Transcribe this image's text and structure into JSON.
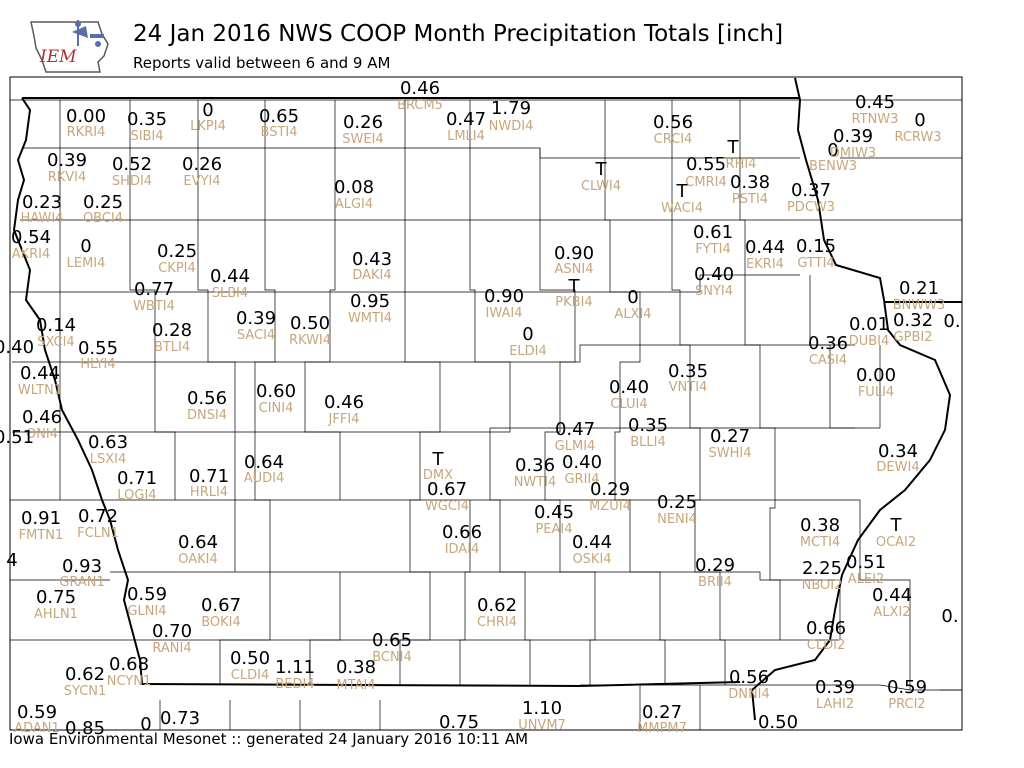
{
  "header": {
    "title": "24 Jan 2016 NWS COOP Month Precipitation Totals [inch]",
    "subtitle": "Reports valid between 6 and 9 AM",
    "logo_text": "IEM"
  },
  "footer": {
    "text": "Iowa Environmental Mesonet :: generated 24 January 2016 10:11 AM"
  },
  "colors": {
    "value_text": "#000000",
    "station_id_text": "#c8a67c",
    "county_lines": "#000000",
    "state_border": "#000000",
    "logo_red": "#b03030",
    "logo_blue": "#5a6fa6"
  },
  "stations": [
    {
      "id": "RKRI4",
      "value": "0.00"
    },
    {
      "id": "SIBI4",
      "value": "0.35"
    },
    {
      "id": "LKPI4",
      "value": "0"
    },
    {
      "id": "BSTI4",
      "value": "0.65"
    },
    {
      "id": "BRCM5",
      "value": "0.46"
    },
    {
      "id": "SWEI4",
      "value": "0.26"
    },
    {
      "id": "LMLI4",
      "value": "0.47"
    },
    {
      "id": "NWDI4",
      "value": "1.79"
    },
    {
      "id": "CRCI4",
      "value": "0.56"
    },
    {
      "id": "RTNW3",
      "value": "0.45"
    },
    {
      "id": "RCRW3",
      "value": "0"
    },
    {
      "id": "DMIW3",
      "value": "0"
    },
    {
      "id": "BENW3",
      "value": "0.39"
    },
    {
      "id": "RKVI4",
      "value": "0.39"
    },
    {
      "id": "SHDI4",
      "value": "0.52"
    },
    {
      "id": "EVYI4",
      "value": "0.26"
    },
    {
      "id": "CLWI4",
      "value": "T"
    },
    {
      "id": "RHI4",
      "value": "T"
    },
    {
      "id": "CMRI4",
      "value": "0.55"
    },
    {
      "id": "WACI4",
      "value": "T"
    },
    {
      "id": "PSTI4",
      "value": "0.38"
    },
    {
      "id": "PDCW3",
      "value": "0.37"
    },
    {
      "id": "HAWI4",
      "value": "0.23"
    },
    {
      "id": "OBCI4",
      "value": "0.25"
    },
    {
      "id": "ALGI4",
      "value": "0.08"
    },
    {
      "id": "AKRI4",
      "value": "0.54"
    },
    {
      "id": "LEMI4",
      "value": "0"
    },
    {
      "id": "CKPI4",
      "value": "0.25"
    },
    {
      "id": "ASNI4",
      "value": "0.90"
    },
    {
      "id": "FYTI4",
      "value": "0.61"
    },
    {
      "id": "EKRI4",
      "value": "0.44"
    },
    {
      "id": "GTTI4",
      "value": "0.15"
    },
    {
      "id": "DAKI4",
      "value": "0.43"
    },
    {
      "id": "SLBI4",
      "value": "0.44"
    },
    {
      "id": "SNYI4",
      "value": "0.40"
    },
    {
      "id": "WBTI4",
      "value": "0.77"
    },
    {
      "id": "PKBI4",
      "value": "T"
    },
    {
      "id": "WMTI4",
      "value": "0.95"
    },
    {
      "id": "IWAI4",
      "value": "0.90"
    },
    {
      "id": "ALXI4",
      "value": "0"
    },
    {
      "id": "BNWW3",
      "value": "0.21"
    },
    {
      "id": "SACI4",
      "value": "0.39"
    },
    {
      "id": "RKWI4",
      "value": "0.50"
    },
    {
      "id": "SXCI4",
      "value": "0.14"
    },
    {
      "id": "BTLI4",
      "value": "0.28"
    },
    {
      "id": "ELDI4",
      "value": "0"
    },
    {
      "id": "DUBI4",
      "value": "0.01"
    },
    {
      "id": "GPBI2",
      "value": "0.32"
    },
    {
      "id": "HLYI4",
      "value": "0.55"
    },
    {
      "id": "CASI4",
      "value": "0.36"
    },
    {
      "id": "VNTI4",
      "value": "0.35"
    },
    {
      "id": "WLTN1",
      "value": "0.44"
    },
    {
      "id": "FULI4",
      "value": "0.00"
    },
    {
      "id": "DNSI4",
      "value": "0.56"
    },
    {
      "id": "CINI4",
      "value": "0.60"
    },
    {
      "id": "JFFI4",
      "value": "0.46"
    },
    {
      "id": "CLUI4",
      "value": "0.40"
    },
    {
      "id": "ONI4",
      "value": "0.46"
    },
    {
      "id": "BLLI4",
      "value": "0.35"
    },
    {
      "id": "GLMI4",
      "value": "0.47"
    },
    {
      "id": "SWHI4",
      "value": "0.27"
    },
    {
      "id": "LSXI4",
      "value": "0.63"
    },
    {
      "id": "DEWI4",
      "value": "0.34"
    },
    {
      "id": "DMX",
      "value": "T"
    },
    {
      "id": "NWTI4",
      "value": "0.36"
    },
    {
      "id": "GRII4",
      "value": "0.40"
    },
    {
      "id": "LOGI4",
      "value": "0.71"
    },
    {
      "id": "HRLI4",
      "value": "0.71"
    },
    {
      "id": "AUDI4",
      "value": "0.64"
    },
    {
      "id": "WGCI4",
      "value": "0.67"
    },
    {
      "id": "MZUI4",
      "value": "0.29"
    },
    {
      "id": "NENI4",
      "value": "0.25"
    },
    {
      "id": "FMTN1",
      "value": "0.91"
    },
    {
      "id": "FCLN1",
      "value": "0.72"
    },
    {
      "id": "PEAI4",
      "value": "0.45"
    },
    {
      "id": "MCTI4",
      "value": "0.38"
    },
    {
      "id": "OCAI2",
      "value": "T"
    },
    {
      "id": "IDAI4",
      "value": "0.66"
    },
    {
      "id": "OAKI4",
      "value": "0.64"
    },
    {
      "id": "OSKI4",
      "value": "0.44"
    },
    {
      "id": "GRAN1",
      "value": "0.93"
    },
    {
      "id": "BRII4",
      "value": "0.29"
    },
    {
      "id": "ALEI2",
      "value": "0.51"
    },
    {
      "id": "NBOI2",
      "value": "2.25"
    },
    {
      "id": "AHLN1",
      "value": "0.75"
    },
    {
      "id": "GLNI4",
      "value": "0.59"
    },
    {
      "id": "ALXI2",
      "value": "0.44"
    },
    {
      "id": "BOKI4",
      "value": "0.67"
    },
    {
      "id": "CHRI4",
      "value": "0.62"
    },
    {
      "id": "RANI4",
      "value": "0.70"
    },
    {
      "id": "BCNI4",
      "value": "0.65"
    },
    {
      "id": "CLDI2",
      "value": "0.66"
    },
    {
      "id": "CLDI4",
      "value": "0.50"
    },
    {
      "id": "BEDI4",
      "value": "1.11"
    },
    {
      "id": "MTAI4",
      "value": "0.38"
    },
    {
      "id": "SYCN1",
      "value": "0.62"
    },
    {
      "id": "NCYN1",
      "value": "0.68"
    },
    {
      "id": "DNNI4",
      "value": "0.56"
    },
    {
      "id": "LAHI2",
      "value": "0.39"
    },
    {
      "id": "PRCI2",
      "value": "0.59"
    },
    {
      "id": "ADAN1",
      "value": "0.59"
    },
    {
      "id": "UNVM7",
      "value": "1.10"
    },
    {
      "id": "MMPM7",
      "value": "0.27"
    }
  ],
  "edge_values": [
    "0.85",
    "0.73",
    "0.75",
    "0.50",
    "0.40",
    "0.51",
    "4",
    "0.",
    "0.",
    "0"
  ]
}
